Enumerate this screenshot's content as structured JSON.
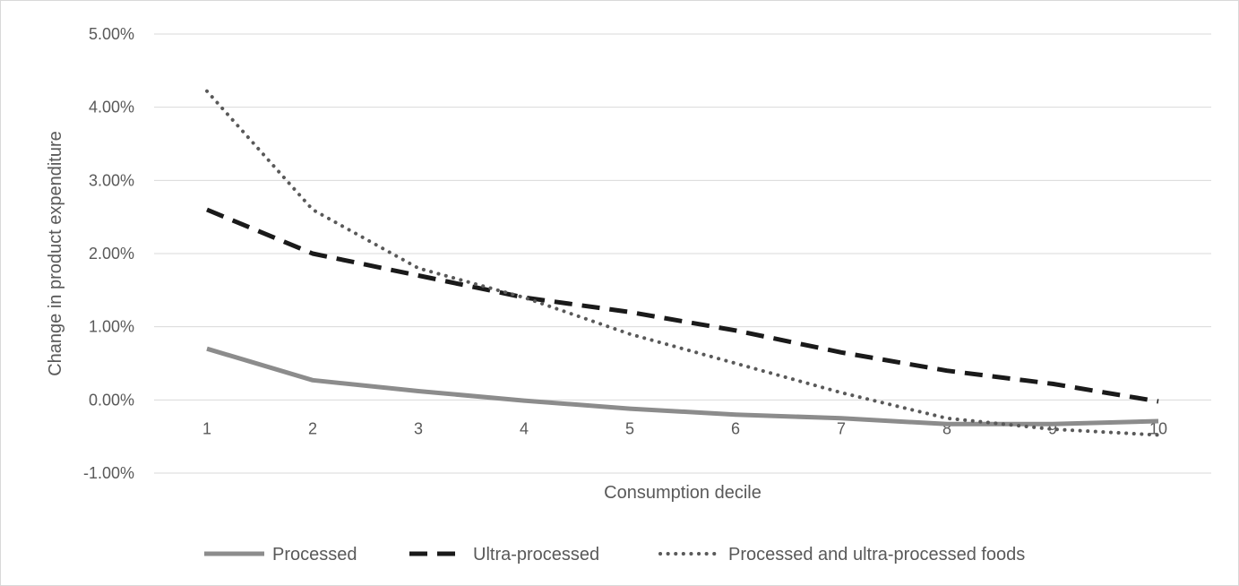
{
  "chart_data": {
    "type": "line",
    "title": "",
    "xlabel": "Consumption decile",
    "ylabel": "Change in product expenditure",
    "categories": [
      "1",
      "2",
      "3",
      "4",
      "5",
      "6",
      "7",
      "8",
      "9",
      "10"
    ],
    "y_ticks": [
      "5.00%",
      "4.00%",
      "3.00%",
      "2.00%",
      "1.00%",
      "0.00%",
      "-1.00%"
    ],
    "ylim": [
      -1.0,
      5.0
    ],
    "y_unit": "%",
    "grid": true,
    "legend_position": "bottom",
    "series": [
      {
        "name": "Processed",
        "style": "solid",
        "color": "#8c8c8c",
        "values": [
          0.7,
          0.27,
          0.12,
          -0.01,
          -0.12,
          -0.2,
          -0.25,
          -0.33,
          -0.33,
          -0.29
        ]
      },
      {
        "name": "Ultra-processed",
        "style": "dashed",
        "color": "#1a1a1a",
        "values": [
          2.6,
          2.0,
          1.7,
          1.4,
          1.2,
          0.95,
          0.65,
          0.4,
          0.22,
          -0.02
        ]
      },
      {
        "name": "Processed and ultra-processed foods",
        "style": "dotted",
        "color": "#595959",
        "values": [
          4.22,
          2.6,
          1.8,
          1.4,
          0.9,
          0.5,
          0.1,
          -0.25,
          -0.4,
          -0.48
        ]
      }
    ]
  }
}
